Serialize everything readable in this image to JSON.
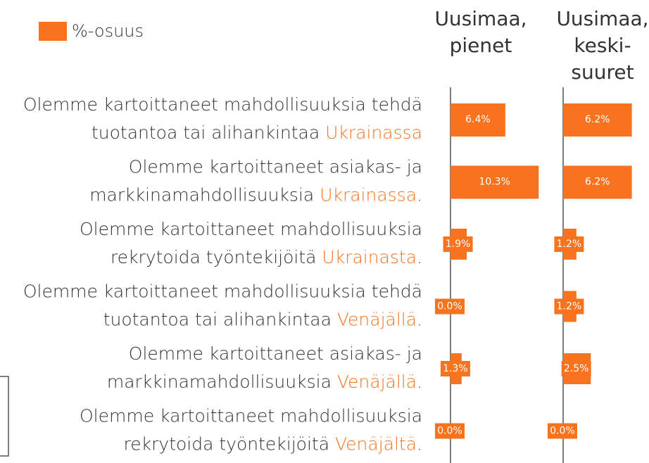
{
  "chart_data": {
    "type": "bar",
    "orientation": "horizontal",
    "legend": "%-osuus",
    "color": "#f7731e",
    "highlight_color": "#f7731e",
    "categories": [
      {
        "line1": "Olemme kartoittaneet mahdollisuuksia tehdä",
        "line2": "tuotantoa tai alihankintaa",
        "highlight": "Ukrainassa"
      },
      {
        "line1": "Olemme kartoittaneet asiakas- ja",
        "line2": "markkinamahdollisuuksia",
        "highlight": "Ukrainassa",
        "end": "."
      },
      {
        "line1": "Olemme kartoittaneet mahdollisuuksia",
        "line2": "rekrytoida työntekijöitä",
        "highlight": "Ukrainasta",
        "end": "."
      },
      {
        "line1": "Olemme kartoittaneet mahdollisuuksia tehdä",
        "line2": "tuotantoa tai alihankintaa",
        "highlight": "Venäjällä",
        "end": "."
      },
      {
        "line1": "Olemme kartoittaneet asiakas- ja",
        "line2": "markkinamahdollisuuksia",
        "highlight": "Venäjällä",
        "end": "."
      },
      {
        "line1": "Olemme kartoittaneet mahdollisuuksia",
        "line2": "rekrytoida työntekijöitä",
        "highlight": "Venäjältä",
        "end": "."
      }
    ],
    "panels": [
      {
        "title": [
          "Uusimaa,",
          "pienet"
        ],
        "xlim": [
          0,
          12
        ],
        "values": [
          6.4,
          10.3,
          1.9,
          0.0,
          1.3,
          0.0
        ],
        "value_labels": [
          "6.4%",
          "10.3%",
          "1.9%",
          "0.0%",
          "1.3%",
          "0.0%"
        ]
      },
      {
        "title": [
          "Uusimaa,",
          "keski-",
          "suuret"
        ],
        "xlim": [
          0,
          8
        ],
        "values": [
          6.2,
          6.2,
          1.2,
          1.2,
          2.5,
          0.0
        ],
        "value_labels": [
          "6.2%",
          "6.2%",
          "1.2%",
          "1.2%",
          "2.5%",
          "0.0%"
        ]
      }
    ]
  }
}
